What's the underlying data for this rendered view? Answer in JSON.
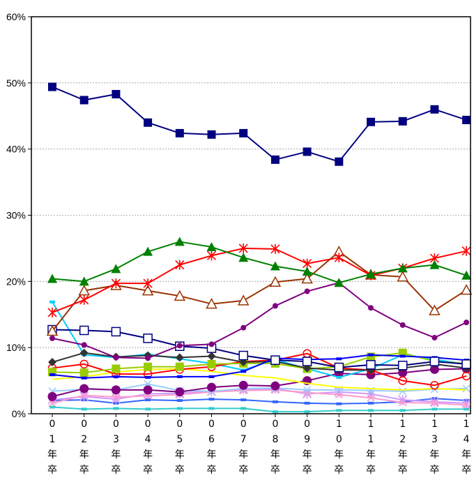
{
  "chart_data": {
    "type": "line",
    "title": "",
    "xlabel": "",
    "ylabel": "",
    "ylim": [
      0,
      60
    ],
    "grid": true,
    "legend": "none",
    "yticks": [
      "0%",
      "10%",
      "20%",
      "30%",
      "40%",
      "50%",
      "60%"
    ],
    "categories": [
      "01年卒",
      "02年卒",
      "03年卒",
      "04年卒",
      "05年卒",
      "06年卒",
      "07年卒",
      "08年卒",
      "09年卒",
      "10年卒",
      "11年卒",
      "12年卒",
      "13年卒",
      "14年卒"
    ],
    "series": [
      {
        "color": "#000080",
        "marker": "square-filled",
        "values": [
          49.4,
          47.4,
          48.3,
          44.0,
          42.4,
          42.2,
          42.4,
          38.4,
          39.6,
          38.1,
          44.1,
          44.2,
          46.0,
          44.4
        ]
      },
      {
        "color": "#008000",
        "marker": "triangle-filled",
        "values": [
          20.4,
          20.0,
          21.9,
          24.5,
          26.0,
          25.2,
          23.6,
          22.3,
          21.5,
          19.8,
          21.1,
          22.0,
          22.5,
          20.9
        ]
      },
      {
        "color": "#ff0000",
        "marker": "asterisk",
        "values": [
          15.3,
          17.2,
          19.7,
          19.7,
          22.5,
          23.9,
          25.0,
          24.9,
          22.7,
          23.6,
          20.9,
          22.0,
          23.5,
          24.6
        ]
      },
      {
        "color": "#993300",
        "marker": "triangle-open",
        "values": [
          12.5,
          18.6,
          19.4,
          18.6,
          17.8,
          16.6,
          17.1,
          19.9,
          20.4,
          24.5,
          21.0,
          20.7,
          15.6,
          18.7
        ]
      },
      {
        "color": "#800080",
        "marker": "circle-small",
        "values": [
          11.4,
          10.4,
          8.5,
          8.4,
          10.3,
          10.5,
          13.0,
          16.3,
          18.5,
          19.8,
          16.0,
          13.4,
          11.5,
          13.8
        ]
      },
      {
        "color": "#000080",
        "marker": "square-open",
        "values": [
          12.7,
          12.6,
          12.4,
          11.4,
          10.2,
          9.9,
          8.8,
          8.1,
          7.9,
          7.0,
          7.4,
          7.3,
          7.9,
          7.5
        ]
      },
      {
        "color": "#0000ff",
        "marker": "dash",
        "values": [
          5.9,
          5.4,
          5.6,
          5.5,
          5.6,
          5.6,
          6.4,
          8.4,
          8.2,
          8.3,
          8.9,
          8.7,
          8.5,
          8.1
        ]
      },
      {
        "color": "#333333",
        "marker": "diamond-filled",
        "values": [
          7.8,
          9.2,
          8.6,
          8.8,
          8.5,
          8.7,
          7.8,
          7.9,
          6.9,
          6.6,
          6.6,
          6.9,
          7.5,
          6.9
        ]
      },
      {
        "color": "#99cc00",
        "marker": "square-filled",
        "values": [
          6.3,
          6.2,
          6.8,
          7.1,
          7.1,
          7.5,
          7.6,
          7.6,
          6.8,
          7.1,
          8.6,
          9.2,
          7.9,
          7.6
        ]
      },
      {
        "color": "#ff0000",
        "marker": "circle-open",
        "values": [
          6.9,
          7.5,
          6.0,
          6.0,
          6.7,
          7.1,
          7.9,
          8.1,
          9.1,
          6.9,
          6.6,
          5.0,
          4.3,
          5.7
        ]
      },
      {
        "color": "#00ccff",
        "marker": "dash",
        "values": [
          16.9,
          8.9,
          8.5,
          9.0,
          8.3,
          7.6,
          6.6,
          8.2,
          6.8,
          5.5,
          6.8,
          8.9,
          8.2,
          7.5
        ]
      },
      {
        "color": "#ffff00",
        "marker": "none",
        "values": [
          5.2,
          5.6,
          6.3,
          6.7,
          6.8,
          6.4,
          5.8,
          5.4,
          4.6,
          4.0,
          3.8,
          3.6,
          3.8,
          3.6
        ]
      },
      {
        "color": "#800080",
        "marker": "circle-filled",
        "values": [
          2.6,
          3.8,
          3.6,
          3.6,
          3.3,
          4.0,
          4.3,
          4.2,
          5.0,
          6.1,
          5.9,
          6.2,
          6.7,
          6.8
        ]
      },
      {
        "color": "#99ccff",
        "marker": "cross",
        "values": [
          3.4,
          3.7,
          3.6,
          4.5,
          3.5,
          3.4,
          3.8,
          3.9,
          3.6,
          3.6,
          3.5,
          3.4,
          3.7,
          3.8
        ]
      },
      {
        "color": "#ff99cc",
        "marker": "cross",
        "values": [
          1.6,
          2.8,
          2.5,
          2.7,
          2.9,
          3.3,
          3.5,
          3.6,
          3.2,
          2.9,
          2.4,
          1.7,
          1.6,
          1.3
        ]
      },
      {
        "color": "#cc99ff",
        "marker": "asterisk",
        "values": [
          2.1,
          2.6,
          2.2,
          3.0,
          3.1,
          3.4,
          3.7,
          3.8,
          3.0,
          3.3,
          3.0,
          2.1,
          1.8,
          1.6
        ]
      },
      {
        "color": "#3366ff",
        "marker": "dash",
        "values": [
          2.0,
          2.1,
          1.6,
          2.1,
          2.0,
          2.2,
          2.1,
          1.8,
          1.6,
          1.5,
          1.6,
          1.8,
          2.3,
          2.0
        ]
      },
      {
        "color": "#33cccc",
        "marker": "dash",
        "values": [
          1.0,
          0.7,
          0.8,
          0.7,
          0.8,
          0.8,
          0.8,
          0.3,
          0.3,
          0.5,
          0.5,
          0.5,
          0.7,
          0.7
        ]
      }
    ]
  }
}
